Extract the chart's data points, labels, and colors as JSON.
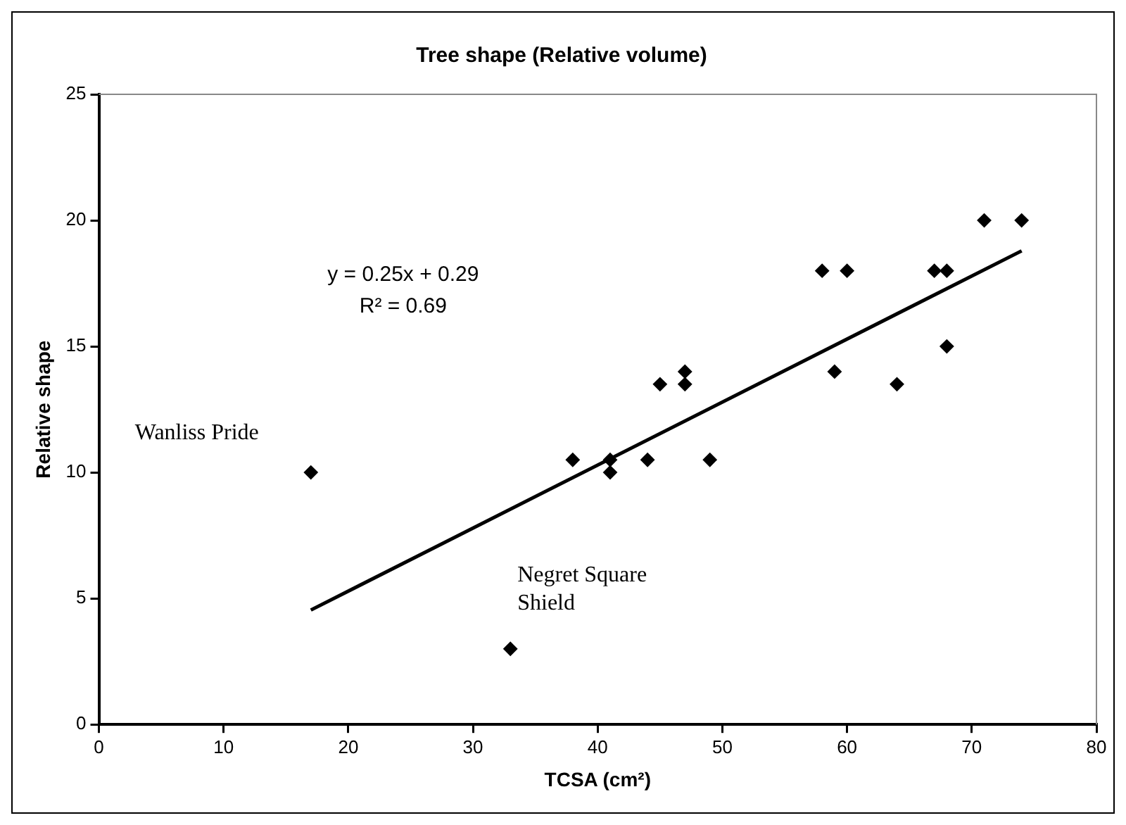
{
  "chart_data": {
    "type": "scatter",
    "title": "Tree shape (Relative volume)",
    "xlabel": "TCSA (cm²)",
    "ylabel": "Relative shape",
    "xlim": [
      0,
      80
    ],
    "xticks": [
      0,
      10,
      20,
      30,
      40,
      50,
      60,
      70,
      80
    ],
    "ylim": [
      0,
      25
    ],
    "yticks": [
      0,
      5,
      10,
      15,
      20,
      25
    ],
    "grid": false,
    "legend": false,
    "marker": "diamond",
    "series": [
      {
        "color": "#000000",
        "x": [
          17,
          33,
          38,
          41,
          41,
          44,
          45,
          47,
          47,
          49,
          58,
          59,
          60,
          64,
          67,
          68,
          68,
          71,
          74
        ],
        "values": [
          10,
          3,
          10.5,
          10.5,
          10,
          10.5,
          13.5,
          14,
          13.5,
          10.5,
          18,
          14,
          18,
          13.5,
          18,
          18,
          15,
          20,
          20
        ]
      },
      {
        "type": "line",
        "color": "#000000",
        "marker": "none",
        "x": [
          17,
          74
        ],
        "values": [
          4.54,
          18.79
        ]
      }
    ],
    "annotations": [
      "y = 0.25x + 0.29",
      "R² = 0.69",
      {
        "text": "Wanliss Pride",
        "x": 17,
        "y": 10
      },
      {
        "text": "Negret Square Shield",
        "x": 33,
        "y": 3
      }
    ]
  }
}
